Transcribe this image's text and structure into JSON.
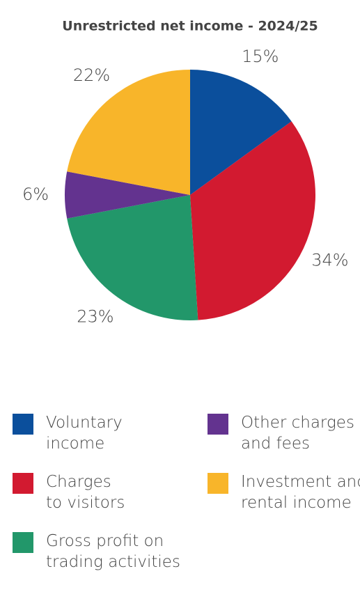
{
  "chart_data": {
    "type": "pie",
    "title": "Unrestricted net income - 2024/25",
    "categories": [
      "Voluntary\nincome",
      "Charges\nto visitors",
      "Gross profit on\ntrading activities",
      "Other charges\nand fees",
      "Investment and\nrental income"
    ],
    "values": [
      15,
      34,
      23,
      6,
      22
    ],
    "value_labels": [
      "15%",
      "34%",
      "23%",
      "6%",
      "22%"
    ],
    "colors": [
      "#0b4f9c",
      "#d21a30",
      "#22976a",
      "#63338f",
      "#f8b52a"
    ]
  }
}
